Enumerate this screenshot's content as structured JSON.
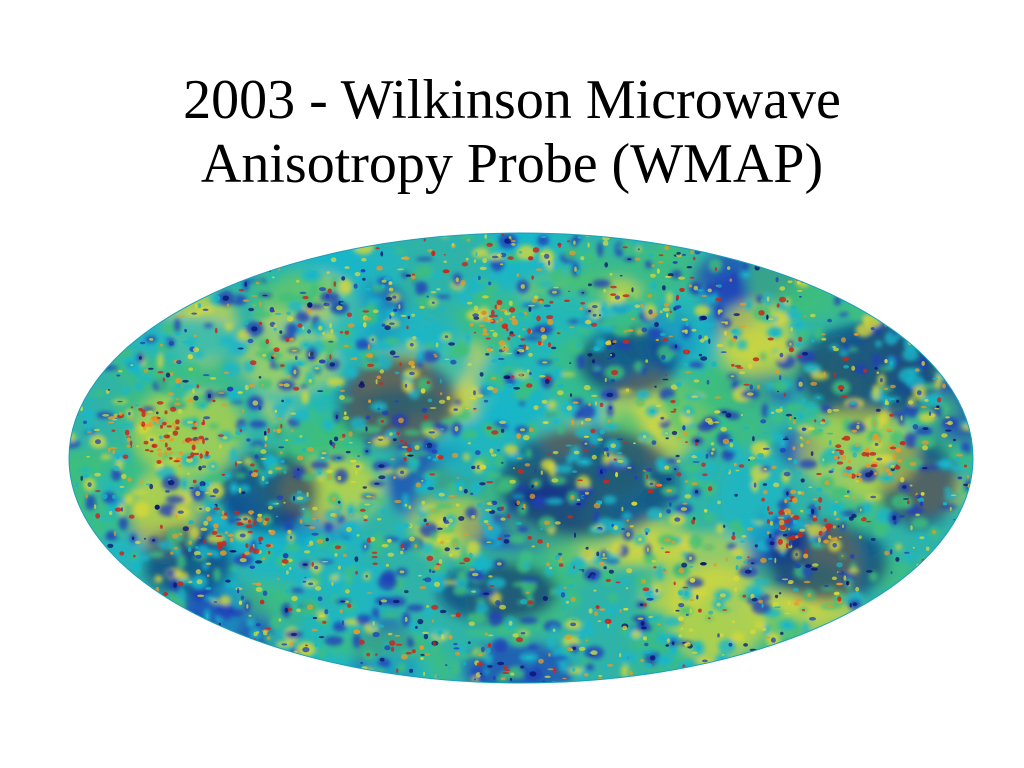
{
  "slide": {
    "title_line1": "2003 - Wilkinson Microwave",
    "title_line2": "Anisotropy Probe (WMAP)"
  },
  "image": {
    "icon": "cmb-sky-map",
    "colors": {
      "cold_deep": "#0a0f6e",
      "cold": "#1f3fb8",
      "cool": "#18b6c9",
      "mean": "#3fbf7a",
      "warm": "#d8d83a",
      "hot": "#e79a2a",
      "hottest": "#c8281e"
    }
  }
}
